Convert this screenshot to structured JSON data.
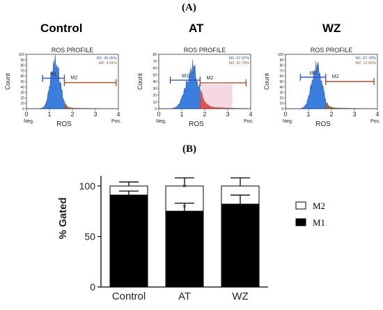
{
  "panel_a_label": "(A)",
  "panel_b_label": "(B)",
  "histograms": [
    {
      "group": "Control",
      "title": "ROS PROFILE",
      "ylabel": "Count",
      "xlabel": "ROS",
      "neg_label": "Neg.",
      "pos_label": "Pos.",
      "m1_label": "M1",
      "m2_label": "M2",
      "stats_m1": "M1: 95.95%",
      "stats_m2": "M2: 3.91%",
      "x_ticks": [
        "0",
        "1",
        "2",
        "3",
        "4"
      ],
      "y_ticks": [
        "0",
        "10",
        "20",
        "30",
        "40",
        "50",
        "60",
        "70",
        "80",
        "90",
        "100"
      ],
      "peak_center": 1.25,
      "peak_width": 0.2,
      "peak_height": 85,
      "tail_level": 3,
      "gate_split": 1.65,
      "m1_range": [
        0.7,
        1.65
      ],
      "m2_range": [
        1.65,
        3.9
      ],
      "m1_gate_count": 56,
      "m2_gate_count": 48,
      "red_fill": false
    },
    {
      "group": "AT",
      "title": "ROS PROFILE",
      "ylabel": "Count",
      "xlabel": "ROS",
      "neg_label": "Neg.",
      "pos_label": "Pos.",
      "m1_label": "M1",
      "m2_label": "M2",
      "stats_m1": "M1: 67.97%",
      "stats_m2": "M2: 31.79%",
      "x_ticks": [
        "0",
        "1",
        "2",
        "3",
        "4"
      ],
      "y_ticks": [
        "0",
        "10",
        "20",
        "30",
        "40",
        "50",
        "60",
        "70",
        "80"
      ],
      "peak_center": 1.45,
      "peak_width": 0.28,
      "peak_height": 55,
      "tail_level": 6,
      "gate_split": 1.8,
      "m1_range": [
        0.5,
        1.8
      ],
      "m2_range": [
        1.8,
        3.8
      ],
      "m1_gate_count": 42,
      "m2_gate_count": 38,
      "red_fill": true
    },
    {
      "group": "WZ",
      "title": "ROS PROFILE",
      "ylabel": "Count",
      "xlabel": "ROS",
      "neg_label": "Neg.",
      "pos_label": "Pos.",
      "m1_label": "M1",
      "m2_label": "M2",
      "stats_m1": "M1: 87.78%",
      "stats_m2": "M2: 12.05%",
      "x_ticks": [
        "0",
        "1",
        "2",
        "3",
        "4"
      ],
      "y_ticks": [
        "0",
        "10",
        "20",
        "30",
        "40",
        "50",
        "60",
        "70",
        "80",
        "90",
        "100"
      ],
      "peak_center": 1.35,
      "peak_width": 0.22,
      "peak_height": 75,
      "tail_level": 4,
      "gate_split": 1.75,
      "m1_range": [
        0.65,
        1.75
      ],
      "m2_range": [
        1.75,
        3.85
      ],
      "m1_gate_count": 58,
      "m2_gate_count": 50,
      "red_fill": false
    }
  ],
  "colors": {
    "histogram_fill": "#3a7fe0",
    "histogram_dark": "#1a4fb0",
    "tail_fill": "#8b5a2b",
    "m1_gate": "#3355cc",
    "m2_gate": "#a0522d",
    "red_fill": "#e8423a",
    "pink_region": "#f6d8e2",
    "stats_m1": "#3355cc",
    "stats_m2": "#a0522d"
  },
  "chart_data": {
    "type": "bar",
    "stacked": true,
    "categories": [
      "Control",
      "AT",
      "WZ"
    ],
    "series": [
      {
        "name": "M1",
        "color": "#000000",
        "values": [
          91,
          75,
          82
        ]
      },
      {
        "name": "M2",
        "color": "#ffffff",
        "values": [
          9,
          25,
          18
        ]
      }
    ],
    "error_top": [
      104,
      108,
      108
    ],
    "error_m1": [
      95,
      83,
      91
    ],
    "significance": [
      "",
      "*",
      ""
    ],
    "ylabel": "% Gated",
    "xlabel": "",
    "yticks": [
      0,
      50,
      100
    ],
    "ylim": [
      0,
      110
    ],
    "legend_position": "right"
  }
}
